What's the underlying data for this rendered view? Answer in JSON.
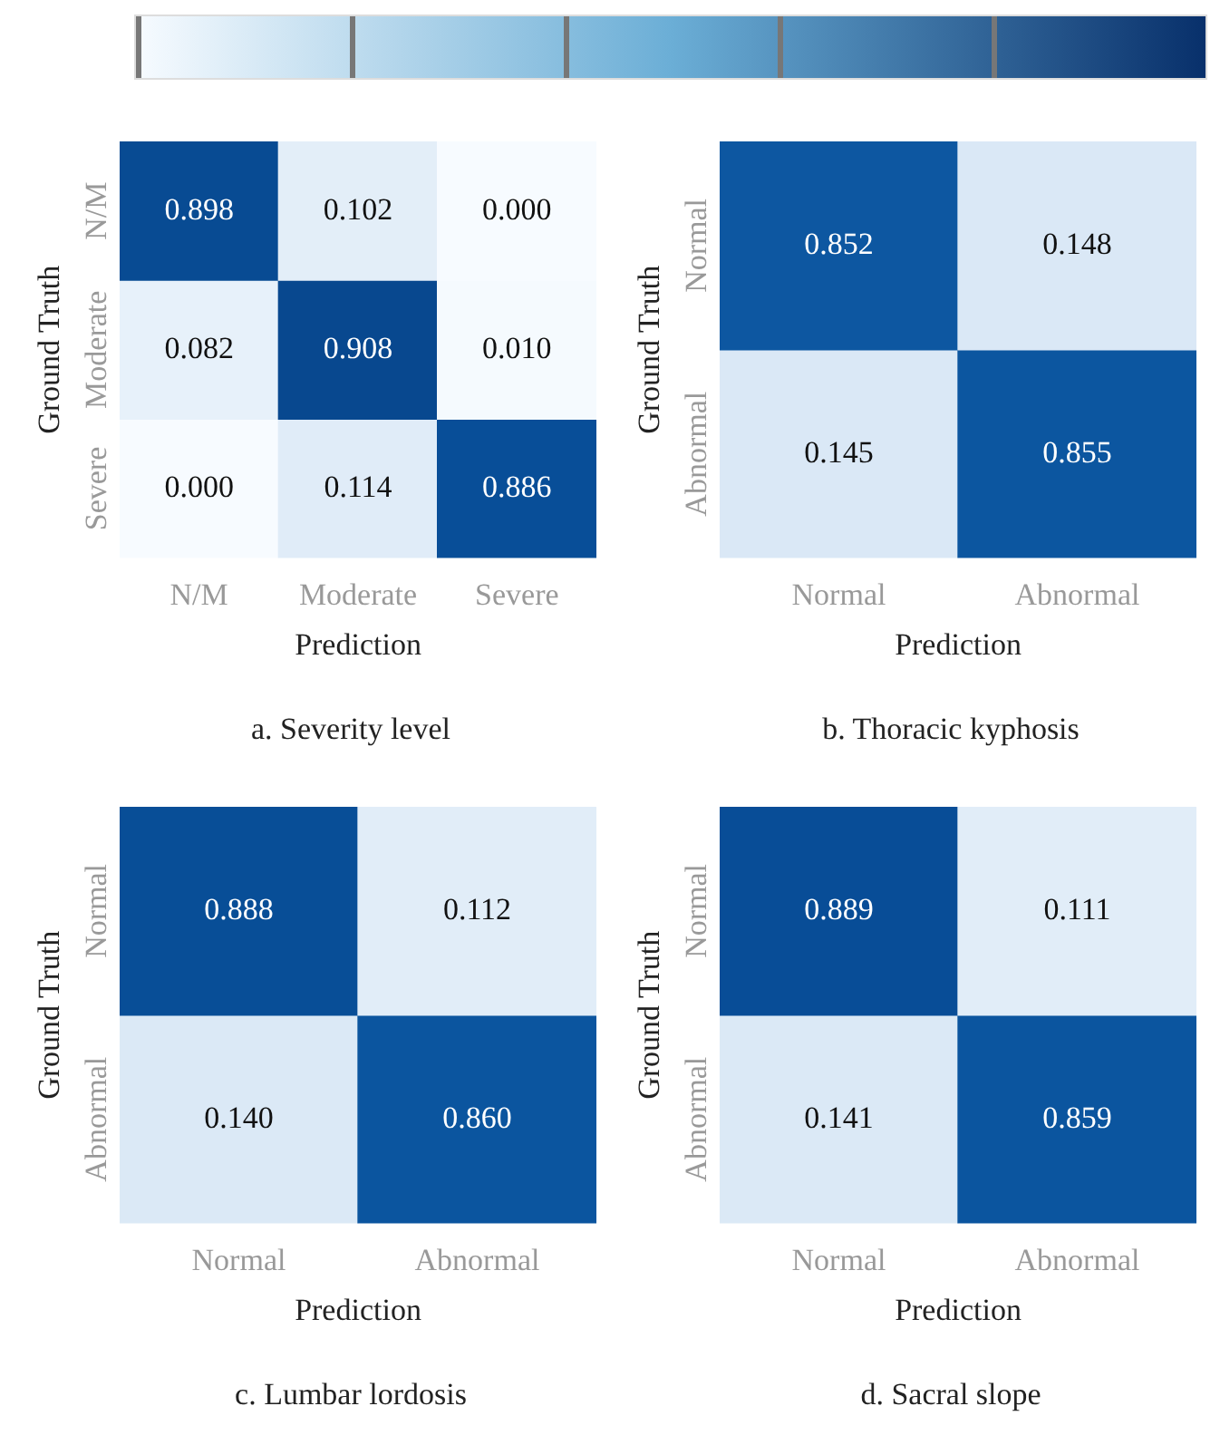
{
  "chart_data": [
    {
      "type": "heatmap",
      "title": "a. Severity level",
      "xlabel": "Prediction",
      "ylabel": "Ground Truth",
      "categories": [
        "N/M",
        "Moderate",
        "Severe"
      ],
      "y_categories": [
        "N/M",
        "Moderate",
        "Severe"
      ],
      "cells": [
        [
          0.898,
          0.102,
          0.0
        ],
        [
          0.082,
          0.908,
          0.01
        ],
        [
          0.0,
          0.114,
          0.886
        ]
      ],
      "cell_labels": [
        [
          "0.898",
          "0.102",
          "0.000"
        ],
        [
          "0.082",
          "0.908",
          "0.010"
        ],
        [
          "0.000",
          "0.114",
          "0.886"
        ]
      ]
    },
    {
      "type": "heatmap",
      "title": "b. Thoracic kyphosis",
      "xlabel": "Prediction",
      "ylabel": "Ground Truth",
      "categories": [
        "Normal",
        "Abnormal"
      ],
      "y_categories": [
        "Normal",
        "Abnormal"
      ],
      "cells": [
        [
          0.852,
          0.148
        ],
        [
          0.145,
          0.855
        ]
      ],
      "cell_labels": [
        [
          "0.852",
          "0.148"
        ],
        [
          "0.145",
          "0.855"
        ]
      ]
    },
    {
      "type": "heatmap",
      "title": "c. Lumbar lordosis",
      "xlabel": "Prediction",
      "ylabel": "Ground Truth",
      "categories": [
        "Normal",
        "Abnormal"
      ],
      "y_categories": [
        "Normal",
        "Abnormal"
      ],
      "cells": [
        [
          0.888,
          0.112
        ],
        [
          0.14,
          0.86
        ]
      ],
      "cell_labels": [
        [
          "0.888",
          "0.112"
        ],
        [
          "0.140",
          "0.860"
        ]
      ]
    },
    {
      "type": "heatmap",
      "title": "d. Sacral slope",
      "xlabel": "Prediction",
      "ylabel": "Ground Truth",
      "categories": [
        "Normal",
        "Abnormal"
      ],
      "y_categories": [
        "Normal",
        "Abnormal"
      ],
      "cells": [
        [
          0.889,
          0.111
        ],
        [
          0.141,
          0.859
        ]
      ],
      "cell_labels": [
        [
          "0.889",
          "0.111"
        ],
        [
          "0.141",
          "0.859"
        ]
      ]
    }
  ]
}
